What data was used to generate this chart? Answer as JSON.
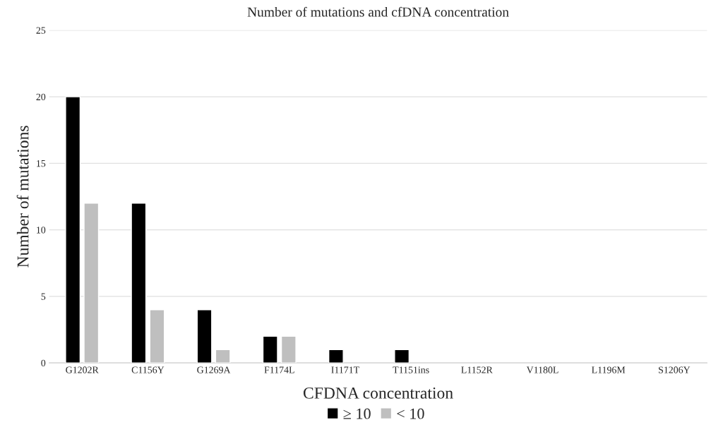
{
  "chart_data": {
    "type": "bar",
    "title": "Number of mutations and cfDNA concentration",
    "xlabel": "CFDNA concentration",
    "ylabel": "Number of mutations",
    "categories": [
      "G1202R",
      "C1156Y",
      "G1269A",
      "F1174L",
      "I1171T",
      "T1151ins",
      "L1152R",
      "V1180L",
      "L1196M",
      "S1206Y"
    ],
    "series": [
      {
        "name": "≥ 10",
        "color": "#000000",
        "values": [
          20,
          12,
          4,
          2,
          1,
          1,
          null,
          null,
          null,
          null
        ]
      },
      {
        "name": "< 10",
        "color": "#bfbfbf",
        "values": [
          12,
          4,
          1,
          2,
          null,
          null,
          null,
          null,
          null,
          null
        ]
      }
    ],
    "ylim": [
      0,
      25
    ],
    "yticks": [
      0,
      5,
      10,
      15,
      20,
      25
    ],
    "grid": "y",
    "legend": "bottom"
  }
}
